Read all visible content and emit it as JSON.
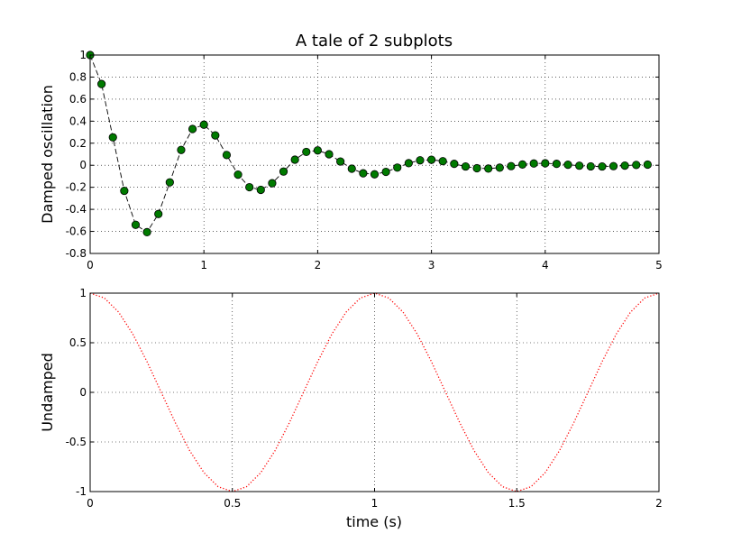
{
  "chart_data": [
    {
      "type": "line",
      "title": "A tale of 2 subplots",
      "xlabel": "",
      "ylabel": "Damped oscillation",
      "xlim": [
        0,
        5
      ],
      "ylim": [
        -0.8,
        1
      ],
      "xticks": [
        0,
        1,
        2,
        3,
        4,
        5
      ],
      "xtick_labels": [
        "0",
        "1",
        "2",
        "3",
        "4",
        "5"
      ],
      "yticks": [
        -0.8,
        -0.6,
        -0.4,
        -0.2,
        0,
        0.2,
        0.4,
        0.6,
        0.8,
        1
      ],
      "ytick_labels": [
        "-0.8",
        "-0.6",
        "-0.4",
        "-0.2",
        "0",
        "0.2",
        "0.4",
        "0.6",
        "0.8",
        "1"
      ],
      "grid": true,
      "series": [
        {
          "line_color": "#000000",
          "line_style": "dashed",
          "marker": "circle",
          "marker_color": "#007a00",
          "x": [
            0.0,
            0.1,
            0.2,
            0.3,
            0.4,
            0.5,
            0.6,
            0.7,
            0.8,
            0.9,
            1.0,
            1.1,
            1.2,
            1.3,
            1.4,
            1.5,
            1.6,
            1.7,
            1.8,
            1.9,
            2.0,
            2.1,
            2.2,
            2.3,
            2.4,
            2.5,
            2.6,
            2.7,
            2.8,
            2.9,
            3.0,
            3.1,
            3.2,
            3.3,
            3.4,
            3.5,
            3.6,
            3.7,
            3.8,
            3.9,
            4.0,
            4.1,
            4.2,
            4.3,
            4.4,
            4.5,
            4.6,
            4.7,
            4.8,
            4.9
          ],
          "y": [
            1.0,
            0.737,
            0.253,
            -0.232,
            -0.54,
            -0.607,
            -0.442,
            -0.155,
            0.139,
            0.329,
            0.368,
            0.271,
            0.093,
            -0.085,
            -0.199,
            -0.223,
            -0.163,
            -0.057,
            0.051,
            0.121,
            0.135,
            0.1,
            0.034,
            -0.031,
            -0.073,
            -0.082,
            -0.06,
            -0.021,
            0.019,
            0.045,
            0.05,
            0.037,
            0.013,
            -0.011,
            -0.027,
            -0.03,
            -0.022,
            -0.008,
            0.007,
            0.016,
            0.018,
            0.013,
            0.005,
            -0.004,
            -0.01,
            -0.011,
            -0.008,
            -0.003,
            0.003,
            0.006
          ]
        }
      ]
    },
    {
      "type": "line",
      "title": "",
      "xlabel": "time (s)",
      "ylabel": "Undamped",
      "xlim": [
        0,
        2
      ],
      "ylim": [
        -1,
        1
      ],
      "xticks": [
        0,
        0.5,
        1,
        1.5,
        2
      ],
      "xtick_labels": [
        "0",
        "0.5",
        "1",
        "1.5",
        "2"
      ],
      "yticks": [
        -1,
        -0.5,
        0,
        0.5,
        1
      ],
      "ytick_labels": [
        "-1",
        "-0.5",
        "0",
        "0.5",
        "1"
      ],
      "grid": true,
      "series": [
        {
          "line_color": "#ff0000",
          "line_style": "dotted",
          "function": "cos(2*pi*t)",
          "x": [
            0.0,
            0.05,
            0.1,
            0.15,
            0.2,
            0.25,
            0.3,
            0.35,
            0.4,
            0.45,
            0.5,
            0.55,
            0.6,
            0.65,
            0.7,
            0.75,
            0.8,
            0.85,
            0.9,
            0.95,
            1.0,
            1.05,
            1.1,
            1.15,
            1.2,
            1.25,
            1.3,
            1.35,
            1.4,
            1.45,
            1.5,
            1.55,
            1.6,
            1.65,
            1.7,
            1.75,
            1.8,
            1.85,
            1.9,
            1.95,
            2.0
          ],
          "y": [
            1.0,
            0.951,
            0.809,
            0.588,
            0.309,
            0.0,
            -0.309,
            -0.588,
            -0.809,
            -0.951,
            -1.0,
            -0.951,
            -0.809,
            -0.588,
            -0.309,
            0.0,
            0.309,
            0.588,
            0.809,
            0.951,
            1.0,
            0.951,
            0.809,
            0.588,
            0.309,
            0.0,
            -0.309,
            -0.588,
            -0.809,
            -0.951,
            -1.0,
            -0.951,
            -0.809,
            -0.588,
            -0.309,
            0.0,
            0.309,
            0.588,
            0.809,
            0.951,
            1.0
          ]
        }
      ]
    }
  ]
}
